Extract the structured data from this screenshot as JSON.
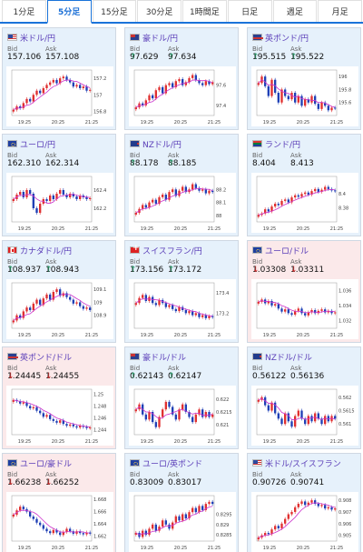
{
  "tabs": [
    {
      "label": "1分足",
      "active": false
    },
    {
      "label": "5分足",
      "active": true
    },
    {
      "label": "15分足",
      "active": false
    },
    {
      "label": "30分足",
      "active": false
    },
    {
      "label": "1時間足",
      "active": false
    },
    {
      "label": "日足",
      "active": false
    },
    {
      "label": "週足",
      "active": false
    },
    {
      "label": "月足",
      "active": false
    }
  ],
  "labels": {
    "bid": "Bid",
    "ask": "Ask",
    "up_arrow": "↑",
    "down_arrow": "↓"
  },
  "colors": {
    "accent": "#1a73d9",
    "up_candle": "#e03030",
    "down_candle": "#1f3fb5",
    "ma_line": "#cc33cc",
    "pair_text": "#5a3db8",
    "card_blue": "#e6f1fb",
    "card_pink": "#fbe9ea"
  },
  "cards": [
    {
      "pair": "米ドル/円",
      "flag": "us",
      "bid": "157.106",
      "ask": "157.108",
      "trend": "none",
      "bg": "blue",
      "chart_data": {
        "type": "candlestick",
        "x_ticks": [
          "19:25",
          "20:25",
          "21:25"
        ],
        "y_ticks": [
          "157.2",
          "157",
          "156.8"
        ],
        "ylim": [
          156.75,
          157.3
        ],
        "closes": [
          156.82,
          156.86,
          156.84,
          156.9,
          156.95,
          156.92,
          157.0,
          157.05,
          157.02,
          157.08,
          157.12,
          157.15,
          157.18,
          157.14,
          157.2,
          157.22,
          157.18,
          157.15,
          157.1,
          157.12,
          157.08,
          157.1,
          157.05,
          157.06
        ]
      }
    },
    {
      "pair": "豪ドル/円",
      "flag": "au",
      "bid": "97.629",
      "ask": "97.634",
      "trend": "up",
      "bg": "blue",
      "chart_data": {
        "type": "candlestick",
        "x_ticks": [
          "19:25",
          "20:25",
          "21:25"
        ],
        "y_ticks": [
          "97.6",
          "97.4"
        ],
        "ylim": [
          97.3,
          97.75
        ],
        "closes": [
          97.38,
          97.42,
          97.4,
          97.45,
          97.5,
          97.47,
          97.55,
          97.58,
          97.52,
          97.6,
          97.62,
          97.58,
          97.64,
          97.66,
          97.6,
          97.63,
          97.67,
          97.7,
          97.65,
          97.62,
          97.6,
          97.64,
          97.61,
          97.63
        ]
      }
    },
    {
      "pair": "英ポンド/円",
      "flag": "gb",
      "bid": "195.515",
      "ask": "195.522",
      "trend": "up",
      "bg": "blue",
      "chart_data": {
        "type": "candlestick",
        "x_ticks": [
          "19:25",
          "20:25",
          "21:25"
        ],
        "y_ticks": [
          "196",
          "195.8",
          "195.6"
        ],
        "ylim": [
          195.4,
          196.1
        ],
        "closes": [
          195.9,
          196.0,
          195.85,
          195.7,
          195.95,
          195.75,
          195.6,
          195.8,
          195.7,
          195.65,
          195.75,
          195.6,
          195.7,
          195.55,
          195.65,
          195.6,
          195.7,
          195.58,
          195.5,
          195.6,
          195.55,
          195.48,
          195.52,
          195.51
        ]
      }
    },
    {
      "pair": "ユーロ/円",
      "flag": "eu",
      "bid": "162.310",
      "ask": "162.314",
      "trend": "none",
      "bg": "blue",
      "chart_data": {
        "type": "candlestick",
        "x_ticks": [
          "19:25",
          "20:25",
          "21:25"
        ],
        "y_ticks": [
          "162.4",
          "162.2"
        ],
        "ylim": [
          162.05,
          162.55
        ],
        "closes": [
          162.3,
          162.35,
          162.38,
          162.32,
          162.4,
          162.36,
          162.2,
          162.15,
          162.25,
          162.3,
          162.28,
          162.34,
          162.3,
          162.36,
          162.4,
          162.35,
          162.32,
          162.36,
          162.33,
          162.3,
          162.34,
          162.32,
          162.3,
          162.31
        ]
      }
    },
    {
      "pair": "NZドル/円",
      "flag": "nz",
      "bid": "88.178",
      "ask": "88.185",
      "trend": "up",
      "bg": "blue",
      "chart_data": {
        "type": "candlestick",
        "x_ticks": [
          "19:25",
          "20:25",
          "21:25"
        ],
        "y_ticks": [
          "88.2",
          "88.1",
          "88"
        ],
        "ylim": [
          87.95,
          88.3
        ],
        "closes": [
          88.02,
          88.05,
          88.08,
          88.06,
          88.1,
          88.12,
          88.09,
          88.14,
          88.16,
          88.12,
          88.18,
          88.2,
          88.15,
          88.19,
          88.22,
          88.18,
          88.2,
          88.24,
          88.21,
          88.19,
          88.2,
          88.17,
          88.19,
          88.18
        ]
      }
    },
    {
      "pair": "ランド/円",
      "flag": "za",
      "bid": "8.404",
      "ask": "8.413",
      "trend": "none",
      "bg": "blue",
      "chart_data": {
        "type": "candlestick",
        "x_ticks": [
          "19:25",
          "20:25",
          "21:25"
        ],
        "y_ticks": [
          "8.4",
          "8.38"
        ],
        "ylim": [
          8.36,
          8.425
        ],
        "closes": [
          8.37,
          8.372,
          8.378,
          8.375,
          8.382,
          8.386,
          8.384,
          8.39,
          8.392,
          8.388,
          8.395,
          8.398,
          8.396,
          8.4,
          8.402,
          8.399,
          8.404,
          8.407,
          8.403,
          8.406,
          8.41,
          8.407,
          8.405,
          8.404
        ]
      }
    },
    {
      "pair": "カナダドル/円",
      "flag": "ca",
      "bid": "108.937",
      "ask": "108.943",
      "trend": "up",
      "bg": "blue",
      "chart_data": {
        "type": "candlestick",
        "x_ticks": [
          "19:25",
          "20:25",
          "21:25"
        ],
        "y_ticks": [
          "109.1",
          "109",
          "108.9"
        ],
        "ylim": [
          108.8,
          109.15
        ],
        "closes": [
          108.86,
          108.9,
          108.88,
          108.93,
          108.96,
          108.94,
          108.99,
          109.02,
          108.98,
          109.03,
          109.06,
          109.02,
          109.08,
          109.1,
          109.05,
          109.07,
          109.04,
          109.02,
          108.99,
          109.0,
          108.97,
          108.95,
          108.96,
          108.94
        ]
      }
    },
    {
      "pair": "スイスフラン/円",
      "flag": "ch",
      "bid": "173.156",
      "ask": "173.172",
      "trend": "up",
      "bg": "blue",
      "chart_data": {
        "type": "candlestick",
        "x_ticks": [
          "19:25",
          "20:25",
          "21:25"
        ],
        "y_ticks": [
          "173.4",
          "173.2"
        ],
        "ylim": [
          173.05,
          173.5
        ],
        "closes": [
          173.3,
          173.35,
          173.38,
          173.32,
          173.36,
          173.3,
          173.28,
          173.33,
          173.3,
          173.26,
          173.28,
          173.24,
          173.22,
          173.26,
          173.23,
          173.2,
          173.22,
          173.18,
          173.2,
          173.16,
          173.18,
          173.15,
          173.17,
          173.16
        ]
      }
    },
    {
      "pair": "ユーロ/ドル",
      "flag": "eu",
      "bid": "1.03308",
      "ask": "1.03311",
      "trend": "down",
      "bg": "pink",
      "chart_data": {
        "type": "candlestick",
        "x_ticks": [
          "19:25",
          "20:25",
          "21:25"
        ],
        "y_ticks": [
          "1.036",
          "1.034",
          "1.032"
        ],
        "ylim": [
          1.031,
          1.037
        ],
        "closes": [
          1.0345,
          1.0348,
          1.0343,
          1.0346,
          1.034,
          1.0342,
          1.0336,
          1.0332,
          1.0335,
          1.033,
          1.0328,
          1.0333,
          1.0336,
          1.033,
          1.0327,
          1.0331,
          1.0334,
          1.033,
          1.0333,
          1.0335,
          1.0331,
          1.0333,
          1.033,
          1.0331
        ]
      }
    },
    {
      "pair": "英ポンド/ドル",
      "flag": "gb",
      "bid": "1.24445",
      "ask": "1.24455",
      "trend": "down",
      "bg": "pink",
      "chart_data": {
        "type": "candlestick",
        "x_ticks": [
          "19:25",
          "20:25",
          "21:25"
        ],
        "y_ticks": [
          "1.25",
          "1.248",
          "1.246",
          "1.244"
        ],
        "ylim": [
          1.2432,
          1.2508
        ],
        "closes": [
          1.249,
          1.2488,
          1.2484,
          1.2486,
          1.248,
          1.2476,
          1.2478,
          1.2472,
          1.2468,
          1.2462,
          1.2465,
          1.2458,
          1.2455,
          1.2452,
          1.2456,
          1.245,
          1.2447,
          1.2449,
          1.2446,
          1.2444,
          1.2447,
          1.2445,
          1.2443,
          1.2444
        ]
      }
    },
    {
      "pair": "豪ドル/ドル",
      "flag": "au",
      "bid": "0.62143",
      "ask": "0.62147",
      "trend": "up",
      "bg": "blue",
      "chart_data": {
        "type": "candlestick",
        "x_ticks": [
          "19:25",
          "20:25",
          "21:25"
        ],
        "y_ticks": [
          "0.622",
          "0.6215",
          "0.621"
        ],
        "ylim": [
          0.6206,
          0.6224
        ],
        "closes": [
          0.6216,
          0.6218,
          0.6214,
          0.6212,
          0.6215,
          0.6211,
          0.6209,
          0.6213,
          0.6216,
          0.6219,
          0.6217,
          0.6214,
          0.6212,
          0.6216,
          0.6218,
          0.6215,
          0.6213,
          0.6211,
          0.6214,
          0.6216,
          0.6213,
          0.6215,
          0.6213,
          0.6214
        ]
      }
    },
    {
      "pair": "NZドル/ドル",
      "flag": "nz",
      "bid": "0.56122",
      "ask": "0.56136",
      "trend": "none",
      "bg": "blue",
      "chart_data": {
        "type": "candlestick",
        "x_ticks": [
          "19:25",
          "20:25",
          "21:25"
        ],
        "y_ticks": [
          "0.562",
          "0.5615",
          "0.561"
        ],
        "ylim": [
          0.5606,
          0.5623
        ],
        "closes": [
          0.5619,
          0.562,
          0.5617,
          0.5615,
          0.5618,
          0.5614,
          0.5612,
          0.561,
          0.5614,
          0.5611,
          0.5609,
          0.5613,
          0.5615,
          0.5612,
          0.561,
          0.5613,
          0.5611,
          0.5614,
          0.5612,
          0.561,
          0.5613,
          0.5611,
          0.5613,
          0.5612
        ]
      }
    },
    {
      "pair": "ユーロ/豪ドル",
      "flag": "eu",
      "bid": "1.66238",
      "ask": "1.66252",
      "trend": "down",
      "bg": "pink",
      "chart_data": {
        "type": "candlestick",
        "x_ticks": [
          "19:25",
          "20:25",
          "21:25"
        ],
        "y_ticks": [
          "1.668",
          "1.666",
          "1.664",
          "1.662"
        ],
        "ylim": [
          1.6612,
          1.6686
        ],
        "closes": [
          1.6655,
          1.6662,
          1.6668,
          1.6664,
          1.666,
          1.6652,
          1.6648,
          1.6642,
          1.6638,
          1.6632,
          1.6628,
          1.6625,
          1.663,
          1.6626,
          1.6622,
          1.6627,
          1.6632,
          1.6628,
          1.6624,
          1.6628,
          1.6625,
          1.6623,
          1.6626,
          1.6624
        ]
      }
    },
    {
      "pair": "ユーロ/英ポンド",
      "flag": "eu",
      "bid": "0.83009",
      "ask": "0.83017",
      "trend": "none",
      "bg": "blue",
      "chart_data": {
        "type": "candlestick",
        "x_ticks": [
          "19:25",
          "20:25",
          "21:25"
        ],
        "y_ticks": [
          "0.8295",
          "0.829",
          "0.8285"
        ],
        "ylim": [
          0.8282,
          0.8304
        ],
        "closes": [
          0.8286,
          0.8284,
          0.8287,
          0.8285,
          0.8288,
          0.829,
          0.8287,
          0.8289,
          0.8292,
          0.829,
          0.8288,
          0.8291,
          0.8294,
          0.8292,
          0.8295,
          0.8293,
          0.8296,
          0.8298,
          0.8296,
          0.8299,
          0.8297,
          0.83,
          0.8301,
          0.83
        ]
      }
    },
    {
      "pair": "米ドル/スイスフラン",
      "flag": "us",
      "bid": "0.90726",
      "ask": "0.90741",
      "trend": "none",
      "bg": "blue",
      "chart_data": {
        "type": "candlestick",
        "x_ticks": [
          "19:25",
          "20:25",
          "21:25"
        ],
        "y_ticks": [
          "0.908",
          "0.907",
          "0.906",
          "0.905"
        ],
        "ylim": [
          0.9045,
          0.9084
        ],
        "closes": [
          0.9048,
          0.905,
          0.9052,
          0.9051,
          0.9055,
          0.9058,
          0.9056,
          0.906,
          0.9064,
          0.9068,
          0.907,
          0.9074,
          0.9077,
          0.9079,
          0.9076,
          0.9078,
          0.908,
          0.9077,
          0.9075,
          0.9076,
          0.9073,
          0.9074,
          0.9072,
          0.9073
        ]
      }
    }
  ]
}
